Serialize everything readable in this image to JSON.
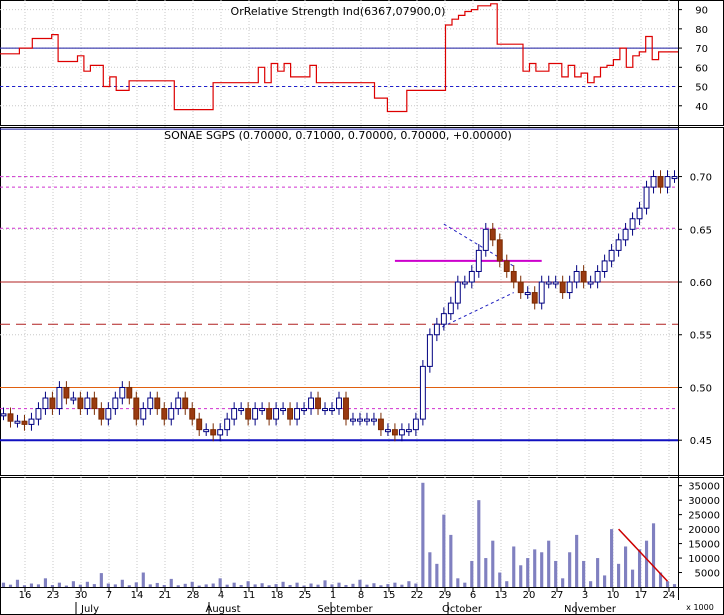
{
  "chart_data": [
    {
      "type": "line",
      "title": "OrRelative Strength Ind(6367,07900,0)",
      "ylim": [
        30,
        95
      ],
      "y_ticks": [
        40,
        50,
        60,
        70,
        80,
        90
      ],
      "reference_lines": [
        {
          "value": 70,
          "style": "solid",
          "color": "#1a1aa0"
        },
        {
          "value": 50,
          "style": "dashed",
          "color": "#2020d0"
        }
      ],
      "series": [
        {
          "color": "#dd0000",
          "values": [
            67,
            67,
            67,
            70,
            70,
            75,
            75,
            75,
            77,
            63,
            63,
            63,
            66,
            58,
            61,
            61,
            50,
            55,
            48,
            48,
            53,
            53,
            53,
            53,
            53,
            53,
            53,
            38,
            38,
            38,
            38,
            38,
            38,
            52,
            52,
            52,
            52,
            52,
            52,
            52,
            60,
            52,
            62,
            58,
            62,
            55,
            55,
            55,
            61,
            52,
            52,
            52,
            52,
            52,
            52,
            52,
            52,
            52,
            44,
            44,
            37,
            37,
            37,
            48,
            48,
            48,
            48,
            48,
            48,
            82,
            85,
            87,
            89,
            90,
            92,
            92,
            93,
            72,
            72,
            72,
            72,
            58,
            62,
            58,
            58,
            62,
            62,
            55,
            61,
            55,
            57,
            52,
            55,
            60,
            61,
            64,
            70,
            60,
            66,
            68,
            76,
            64,
            68,
            68,
            68
          ]
        }
      ]
    },
    {
      "type": "candlestick",
      "title": "SONAE SGPS (0.70000, 0.71000, 0.70000, 0.70000, +0.00000)",
      "ylim": [
        0.417,
        0.747
      ],
      "y_ticks": [
        0.45,
        0.5,
        0.55,
        0.6,
        0.65,
        0.7
      ],
      "reference_lines": [
        {
          "value": 0.745,
          "style": "solid",
          "color": "#1a1aa0"
        },
        {
          "value": 0.7,
          "style": "dotted",
          "color": "#d030d0"
        },
        {
          "value": 0.69,
          "style": "dotted",
          "color": "#d030d0"
        },
        {
          "value": 0.651,
          "style": "dotted",
          "color": "#d030d0"
        },
        {
          "value": 0.6,
          "style": "solid",
          "color": "#b02020"
        },
        {
          "value": 0.56,
          "style": "dashed",
          "color": "#b02020"
        },
        {
          "value": 0.5,
          "style": "solid",
          "color": "#e06010"
        },
        {
          "value": 0.48,
          "style": "dotted",
          "color": "#d030d0"
        },
        {
          "value": 0.45,
          "style": "solid",
          "color": "#1010c0"
        }
      ],
      "segments": [
        {
          "x1": 56,
          "y1": 0.62,
          "x2": 77,
          "y2": 0.62,
          "color": "#cc00cc",
          "style": "solid"
        },
        {
          "x1": 63,
          "y1": 0.655,
          "x2": 73,
          "y2": 0.615,
          "color": "#2020c0",
          "style": "dashed"
        },
        {
          "x1": 62,
          "y1": 0.555,
          "x2": 73,
          "y2": 0.59,
          "color": "#2020c0",
          "style": "dashed"
        }
      ],
      "close": [
        0.475,
        0.468,
        0.468,
        0.465,
        0.47,
        0.48,
        0.49,
        0.48,
        0.5,
        0.49,
        0.49,
        0.48,
        0.49,
        0.48,
        0.47,
        0.48,
        0.49,
        0.5,
        0.49,
        0.47,
        0.48,
        0.49,
        0.48,
        0.47,
        0.48,
        0.49,
        0.48,
        0.47,
        0.46,
        0.46,
        0.455,
        0.46,
        0.47,
        0.48,
        0.48,
        0.47,
        0.48,
        0.48,
        0.47,
        0.48,
        0.48,
        0.47,
        0.48,
        0.48,
        0.49,
        0.48,
        0.48,
        0.48,
        0.49,
        0.47,
        0.47,
        0.47,
        0.47,
        0.47,
        0.46,
        0.46,
        0.455,
        0.46,
        0.46,
        0.47,
        0.52,
        0.55,
        0.56,
        0.57,
        0.58,
        0.6,
        0.6,
        0.61,
        0.63,
        0.65,
        0.64,
        0.62,
        0.61,
        0.6,
        0.59,
        0.59,
        0.58,
        0.6,
        0.6,
        0.6,
        0.59,
        0.6,
        0.61,
        0.6,
        0.6,
        0.61,
        0.62,
        0.63,
        0.64,
        0.65,
        0.66,
        0.67,
        0.69,
        0.7,
        0.69,
        0.7,
        0.7
      ]
    },
    {
      "type": "bar",
      "title": "",
      "ylim": [
        0,
        38000
      ],
      "y_ticks": [
        5000,
        10000,
        15000,
        20000,
        25000,
        30000,
        35000
      ],
      "y_tick_labels": [
        "5000",
        "10000",
        "15000",
        "20000",
        "25000",
        "30000",
        "35000"
      ],
      "unit_label": "x 1000",
      "values": [
        1500,
        800,
        2500,
        600,
        1200,
        900,
        3000,
        700,
        1500,
        500,
        2000,
        800,
        1800,
        1000,
        4800,
        1200,
        900,
        2500,
        600,
        1600,
        5000,
        900,
        1400,
        700,
        2800,
        600,
        1100,
        1800,
        500,
        900,
        1200,
        3000,
        800,
        1500,
        700,
        2000,
        900,
        1300,
        600,
        1000,
        1800,
        700,
        1500,
        500,
        1200,
        800,
        2300,
        900,
        1500,
        700,
        1100,
        2500,
        800,
        1300,
        600,
        1000,
        1500,
        800,
        2000,
        1200,
        36000,
        12000,
        8000,
        25000,
        18000,
        3000,
        1500,
        9000,
        30000,
        10000,
        16000,
        5000,
        2000,
        14000,
        7500,
        10000,
        13000,
        12000,
        16000,
        9000,
        3000,
        12000,
        18000,
        9000,
        2000,
        10000,
        4000,
        20000,
        8000,
        14000,
        6000,
        13000,
        16000,
        22000,
        5000,
        2000,
        1000
      ],
      "trend_segment": {
        "from_index": 88,
        "from_value": 20000,
        "to_index": 95,
        "to_value": 2000,
        "color": "#cc0000"
      }
    }
  ],
  "x_axis": {
    "day_ticks": [
      "16",
      "23",
      "30",
      "7",
      "14",
      "21",
      "28",
      "4",
      "11",
      "18",
      "25",
      "1",
      "8",
      "15",
      "22",
      "29",
      "6",
      "13",
      "20",
      "27",
      "3",
      "10",
      "17",
      "24"
    ],
    "months": [
      "July",
      "August",
      "September",
      "October",
      "November"
    ]
  }
}
